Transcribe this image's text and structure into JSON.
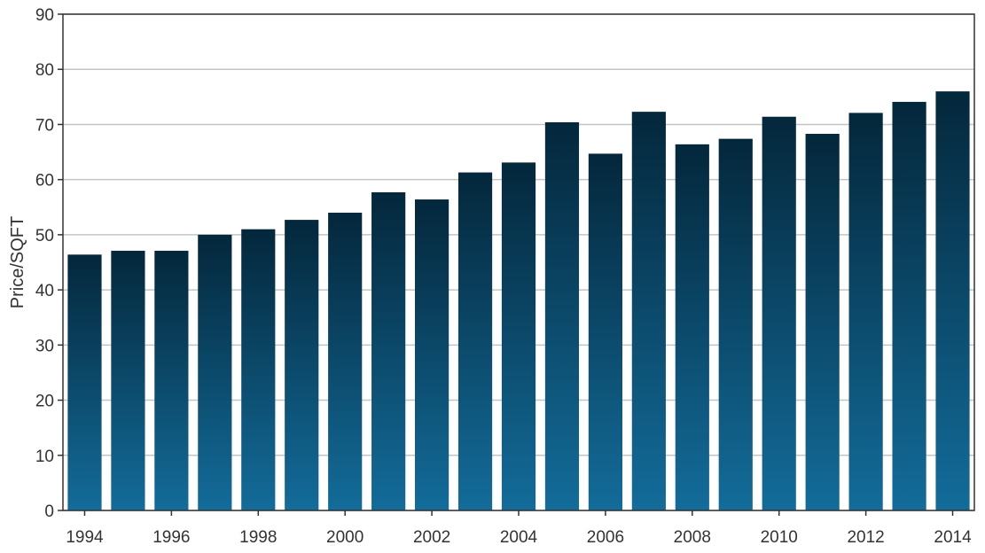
{
  "chart_data": {
    "type": "bar",
    "title": "",
    "xlabel": "",
    "ylabel": "Price/SQFT",
    "ylim": [
      0,
      90
    ],
    "yticks": [
      0,
      10,
      20,
      30,
      40,
      50,
      60,
      70,
      80,
      90
    ],
    "categories": [
      "1994",
      "1995",
      "1996",
      "1997",
      "1998",
      "1999",
      "2000",
      "2001",
      "2002",
      "2003",
      "2004",
      "2005",
      "2006",
      "2007",
      "2008",
      "2009",
      "2010",
      "2011",
      "2012",
      "2013",
      "2014"
    ],
    "xtick_labels": [
      "1994",
      "1996",
      "1998",
      "2000",
      "2002",
      "2004",
      "2006",
      "2008",
      "2010",
      "2012",
      "2014"
    ],
    "values": [
      46.4,
      47.1,
      47.1,
      50.0,
      51.0,
      52.7,
      54.0,
      57.7,
      56.4,
      61.3,
      63.1,
      70.4,
      64.7,
      72.3,
      66.4,
      67.4,
      71.4,
      68.3,
      72.1,
      74.1,
      76.0
    ],
    "grid": "horizontal",
    "colors": {
      "bar_top": "#04273b",
      "bar_bottom": "#136c9a",
      "grid": "#c4c4c4",
      "axis": "#333333"
    }
  }
}
